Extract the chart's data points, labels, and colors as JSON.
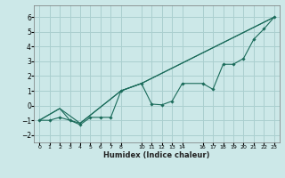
{
  "xlabel": "Humidex (Indice chaleur)",
  "background_color": "#cce8e8",
  "grid_color": "#aacfcf",
  "line_color": "#1a6b5a",
  "xlim": [
    -0.5,
    23.5
  ],
  "ylim": [
    -2.5,
    6.8
  ],
  "yticks": [
    -2,
    -1,
    0,
    1,
    2,
    3,
    4,
    5,
    6
  ],
  "xticks": [
    0,
    1,
    2,
    3,
    4,
    5,
    6,
    7,
    8,
    10,
    11,
    12,
    13,
    14,
    16,
    17,
    18,
    19,
    20,
    21,
    22,
    23
  ],
  "line1_x": [
    0,
    1,
    2,
    3,
    4,
    5,
    6,
    7,
    8,
    10,
    11,
    12,
    13,
    14,
    16,
    17,
    18,
    19,
    20,
    21,
    22,
    23
  ],
  "line1_y": [
    -1,
    -1,
    -0.8,
    -1.0,
    -1.3,
    -0.8,
    -0.8,
    -0.8,
    1.0,
    1.5,
    0.1,
    0.05,
    0.3,
    1.5,
    1.5,
    1.1,
    2.8,
    2.8,
    3.2,
    4.5,
    5.2,
    6.0
  ],
  "line2_x": [
    0,
    2,
    3,
    4,
    8,
    10,
    23
  ],
  "line2_y": [
    -1,
    -0.2,
    -1.0,
    -1.2,
    1.0,
    1.5,
    6.0
  ],
  "line3_x": [
    0,
    2,
    4,
    8,
    10,
    23
  ],
  "line3_y": [
    -1,
    -0.2,
    -1.2,
    1.0,
    1.5,
    6.0
  ]
}
